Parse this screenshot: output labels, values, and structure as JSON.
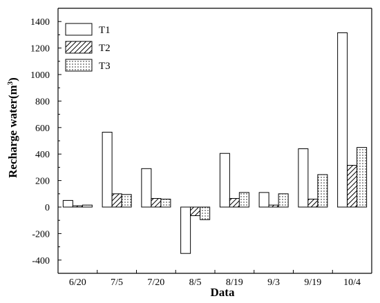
{
  "chart_data": {
    "type": "bar",
    "categories": [
      "6/20",
      "7/5",
      "7/20",
      "8/5",
      "8/19",
      "9/3",
      "9/19",
      "10/4"
    ],
    "series": [
      {
        "name": "T1",
        "pattern": "empty",
        "values": [
          50,
          565,
          290,
          -350,
          405,
          110,
          440,
          1315
        ]
      },
      {
        "name": "T2",
        "pattern": "hatched",
        "values": [
          10,
          100,
          65,
          -65,
          65,
          15,
          60,
          315
        ]
      },
      {
        "name": "T3",
        "pattern": "dotted",
        "values": [
          15,
          95,
          60,
          -95,
          110,
          100,
          245,
          450
        ]
      }
    ],
    "xlabel": "Data",
    "ylabel": "Recharge water(m",
    "ylabel_superscript": "3",
    "ylabel_close": ")",
    "ylim": [
      -500,
      1500
    ],
    "yticks": [
      -400,
      -200,
      0,
      200,
      400,
      600,
      800,
      1000,
      1200,
      1400
    ],
    "ytick_labels": [
      "-400",
      "-200",
      "0",
      "200",
      "400",
      "600",
      "800",
      "1000",
      "1200",
      "1400"
    ],
    "grid": false,
    "legend_position": "top-left"
  },
  "colors": {
    "bar_stroke": "#000000",
    "bar_fill": "#ffffff",
    "axis": "#000000"
  }
}
